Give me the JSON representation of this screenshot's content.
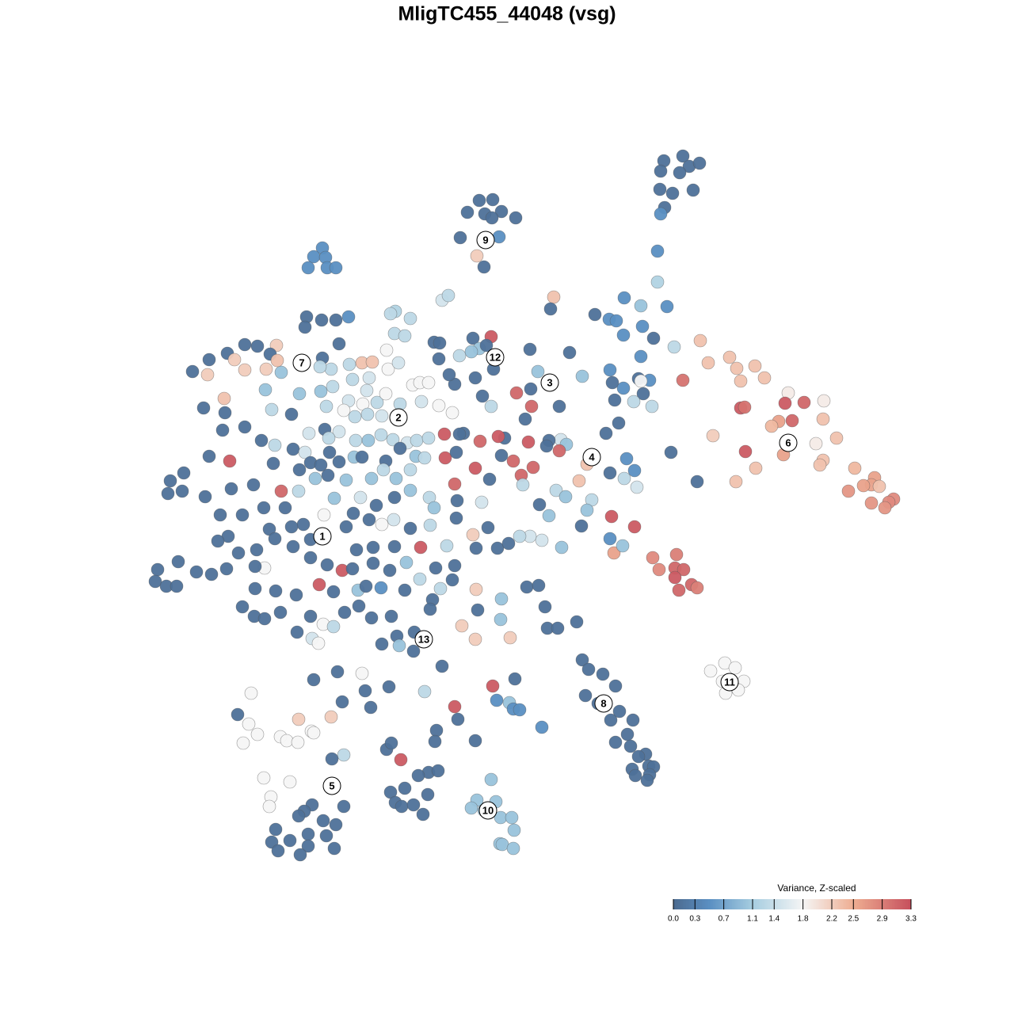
{
  "chart_data": {
    "type": "scatter",
    "title": "MligTC455_44048 (vsg)",
    "xlim": [
      0,
      1280
    ],
    "ylim": [
      1280,
      0
    ],
    "x": [
      838,
      862,
      870,
      883,
      834,
      858,
      833,
      849,
      875,
      839,
      834,
      605,
      622,
      590,
      612,
      633,
      621,
      651,
      581,
      630,
      602,
      611,
      407,
      396,
      411,
      389,
      413,
      424,
      830,
      830,
      699,
      695,
      788,
      809,
      842,
      751,
      769,
      778,
      811,
      787,
      825,
      851,
      719,
      809,
      770,
      735,
      773,
      806,
      820,
      809,
      787,
      812,
      800,
      823,
      776,
      862,
      781,
      765,
      847,
      880,
      884,
      894,
      921,
      930,
      953,
      935,
      965,
      995,
      991,
      1015,
      1040,
      935,
      940,
      983,
      974,
      1000,
      1039,
      900,
      1056,
      1030,
      941,
      989,
      1039,
      954,
      1035,
      929,
      1079,
      1104,
      1100,
      1110,
      1071,
      1090,
      1128,
      1122,
      1100,
      1117,
      824,
      854,
      832,
      852,
      863,
      852,
      873,
      880,
      857,
      775,
      772,
      801,
      770,
      786,
      747,
      741,
      731,
      770,
      791,
      801,
      788,
      804,
      747,
      741,
      734,
      708,
      715,
      706,
      693,
      690,
      702,
      714,
      681,
      693,
      709,
      684,
      669,
      656,
      620,
      597,
      605,
      614,
      580,
      595,
      623,
      679,
      669,
      695,
      706,
      652,
      671,
      670,
      663,
      667,
      637,
      629,
      606,
      633,
      648,
      658,
      673,
      660,
      600,
      574,
      562,
      576,
      561,
      585,
      620,
      609,
      600,
      574,
      567,
      548,
      555,
      554,
      580,
      618,
      608,
      558,
      566,
      499,
      493,
      518,
      440,
      406,
      424,
      387,
      385,
      498,
      511,
      488,
      428,
      407,
      457,
      470,
      441,
      418,
      404,
      490,
      503,
      349,
      341,
      325,
      309,
      287,
      264,
      296,
      309,
      336,
      355,
      243,
      262,
      350,
      382,
      445,
      466,
      521,
      530,
      541,
      505,
      532,
      554,
      571,
      335,
      378,
      405,
      420,
      463,
      440,
      458,
      476,
      487,
      434,
      412,
      464,
      448,
      482,
      343,
      283,
      257,
      284,
      368,
      390,
      410,
      428,
      415,
      449,
      465,
      481,
      496,
      514,
      526,
      541,
      309,
      281,
      330,
      347,
      370,
      385,
      416,
      428,
      447,
      457,
      487,
      505,
      525,
      536,
      518,
      500,
      484,
      469,
      437,
      398,
      377,
      355,
      290,
      264,
      232,
      215,
      212,
      230,
      259,
      292,
      320,
      345,
      378,
      392,
      414,
      405,
      278,
      306,
      333,
      360,
      409,
      422,
      455,
      475,
      498,
      518,
      542,
      548,
      577,
      576,
      543,
      518,
      497,
      482,
      466,
      446,
      437,
      408,
      392,
      383,
      368,
      340,
      288,
      275,
      301,
      324,
      347,
      370,
      392,
      413,
      432,
      450,
      471,
      498,
      531,
      564,
      597,
      616,
      628,
      642,
      601,
      574,
      550,
      513,
      492,
      471,
      445,
      421,
      403,
      374,
      348,
      322,
      334,
      322,
      286,
      267,
      248,
      225,
      199,
      196,
      210,
      223,
      306,
      321,
      334,
      354,
      392,
      408,
      421,
      435,
      453,
      469,
      494,
      511,
      530,
      556,
      571,
      546,
      543,
      523,
      501,
      482,
      504,
      522,
      452,
      462,
      481,
      583,
      600,
      644,
      601,
      633,
      632,
      603,
      665,
      680,
      688,
      691,
      704,
      728,
      375,
      394,
      402,
      558,
      536,
      491,
      461,
      457,
      426,
      396,
      432,
      468,
      551,
      549,
      600,
      622,
      650,
      643,
      627,
      648,
      656,
      574,
      578,
      684,
      488,
      494,
      506,
      541,
      553,
      528,
      540,
      511,
      493,
      499,
      507,
      522,
      534,
      317,
      300,
      314,
      325,
      307,
      354,
      362,
      376,
      377,
      418,
      393,
      396,
      434,
      419,
      333,
      366,
      342,
      340,
      394,
      434,
      384,
      377,
      408,
      424,
      348,
      389,
      412,
      366,
      343,
      389,
      351,
      379,
      422,
      620,
      602,
      626,
      595,
      611,
      632,
      646,
      649,
      631,
      634,
      648,
      735,
      743,
      761,
      777,
      739,
      755,
      771,
      782,
      799,
      792,
      777,
      796,
      815,
      806,
      819,
      825,
      798,
      820,
      817,
      802,
      915,
      928,
      897,
      912,
      939,
      926,
      916,
      932
    ],
    "y": [
      203,
      197,
      210,
      206,
      216,
      218,
      239,
      244,
      240,
      262,
      270,
      253,
      252,
      268,
      270,
      267,
      275,
      275,
      300,
      299,
      323,
      337,
      313,
      324,
      325,
      338,
      338,
      338,
      317,
      356,
      375,
      390,
      376,
      386,
      387,
      397,
      403,
      405,
      412,
      423,
      427,
      438,
      445,
      450,
      467,
      475,
      483,
      478,
      480,
      481,
      490,
      497,
      507,
      513,
      505,
      480,
      534,
      547,
      571,
      608,
      430,
      458,
      451,
      465,
      462,
      481,
      477,
      496,
      509,
      508,
      506,
      515,
      514,
      532,
      538,
      531,
      529,
      550,
      553,
      560,
      570,
      574,
      581,
      591,
      587,
      608,
      591,
      603,
      612,
      614,
      620,
      613,
      630,
      634,
      635,
      641,
      704,
      700,
      719,
      717,
      719,
      729,
      738,
      742,
      745,
      698,
      652,
      665,
      680,
      689,
      577,
      586,
      607,
      597,
      579,
      594,
      604,
      615,
      631,
      644,
      664,
      555,
      561,
      569,
      556,
      563,
      619,
      627,
      637,
      651,
      691,
      682,
      677,
      677,
      425,
      427,
      440,
      436,
      449,
      444,
      466,
      469,
      441,
      483,
      513,
      496,
      513,
      491,
      529,
      558,
      553,
      551,
      557,
      575,
      582,
      600,
      590,
      612,
      591,
      611,
      578,
      571,
      548,
      547,
      513,
      500,
      477,
      485,
      473,
      432,
      433,
      453,
      548,
      605,
      634,
      379,
      373,
      393,
      396,
      402,
      400,
      404,
      404,
      400,
      413,
      421,
      424,
      442,
      434,
      452,
      458,
      457,
      460,
      466,
      463,
      466,
      458,
      436,
      447,
      437,
      435,
      446,
      454,
      454,
      467,
      466,
      470,
      469,
      473,
      455,
      458,
      479,
      477,
      486,
      483,
      483,
      510,
      507,
      512,
      521,
      492,
      497,
      494,
      488,
      493,
      506,
      510,
      508,
      497,
      518,
      513,
      523,
      526,
      525,
      517,
      503,
      515,
      521,
      523,
      547,
      542,
      545,
      553,
      556,
      556,
      549,
      555,
      559,
      556,
      553,
      539,
      543,
      556,
      562,
      567,
      571,
      571,
      583,
      577,
      577,
      582,
      566,
      576,
      578,
      593,
      604,
      593,
      604,
      606,
      604,
      620,
      620,
      582,
      576,
      597,
      607,
      623,
      620,
      627,
      617,
      612,
      585,
      593,
      584,
      600,
      587,
      650,
      650,
      641,
      641,
      650,
      629,
      628,
      638,
      628,
      619,
      628,
      641,
      632,
      654,
      663,
      667,
      656,
      662,
      656,
      648,
      665,
      678,
      681,
      662,
      665,
      668,
      677,
      683,
      698,
      694,
      680,
      690,
      704,
      713,
      720,
      694,
      691,
      690,
      691,
      689,
      675,
      666,
      692,
      686,
      692,
      714,
      717,
      710,
      720,
      711,
      718,
      747,
      738,
      751,
      746,
      743,
      717,
      715,
      718,
      725,
      722,
      709,
      719,
      734,
      740,
      740,
      766,
      778,
      781,
      773,
      778,
      788,
      791,
      773,
      765,
      780,
      778,
      745,
      731,
      743,
      732,
      757,
      769,
      798,
      803,
      813,
      815,
      822,
      745,
      740,
      742,
      790,
      807,
      805,
      744,
      756,
      782,
      770,
      741,
      739,
      766,
      793,
      793,
      785,
      798,
      806,
      812,
      841,
      873,
      867,
      872,
      850,
      848,
      858,
      886,
      893,
      922,
      936,
      935,
      866,
      857,
      887,
      884,
      895,
      896,
      892,
      908,
      918,
      946,
      938,
      959,
      975,
      973,
      979,
      1003,
      995,
      1000,
      1013,
      1018,
      1016,
      1028,
      875,
      902,
      914,
      927,
      938,
      930,
      935,
      937,
      908,
      905,
      923,
      925,
      953,
      958,
      982,
      987,
      1006,
      1018,
      1016,
      1018,
      1024,
      1030,
      1036,
      1041,
      1047,
      1053,
      1055,
      1061,
      1063,
      1068,
      1074,
      1079,
      1071,
      984,
      1010,
      1012,
      1020,
      1023,
      1032,
      1032,
      1048,
      1065,
      1066,
      1071,
      833,
      845,
      851,
      866,
      878,
      888,
      909,
      898,
      909,
      927,
      937,
      942,
      952,
      955,
      967,
      968,
      971,
      978,
      985,
      979,
      837,
      843,
      847,
      860,
      860,
      867,
      875,
      871
    ],
    "values": [
      0.1,
      0.1,
      0.1,
      0.1,
      0.1,
      0.1,
      0.1,
      0.1,
      0.1,
      0.1,
      0.5,
      0.1,
      0.1,
      0.1,
      0.1,
      0.1,
      0.1,
      0.1,
      0.1,
      0.5,
      2.2,
      0.1,
      0.5,
      0.5,
      0.5,
      0.5,
      0.5,
      0.5,
      0.5,
      1.2,
      2.3,
      0.1,
      0.5,
      1.0,
      0.5,
      0.1,
      0.5,
      0.5,
      0.5,
      0.5,
      0.1,
      1.3,
      0.1,
      0.5,
      0.5,
      1.0,
      0.1,
      0.1,
      0.5,
      1.8,
      0.5,
      0.1,
      1.3,
      1.3,
      0.1,
      3.0,
      0.1,
      0.1,
      0.1,
      0.1,
      2.3,
      2.3,
      2.3,
      2.3,
      2.3,
      2.3,
      2.3,
      1.9,
      3.2,
      3.1,
      1.9,
      3.2,
      3.0,
      2.6,
      2.4,
      3.1,
      2.3,
      2.2,
      2.3,
      1.9,
      3.2,
      2.6,
      2.3,
      2.3,
      2.3,
      2.3,
      2.4,
      2.6,
      2.6,
      2.3,
      2.7,
      2.6,
      2.8,
      2.8,
      2.7,
      2.7,
      2.8,
      2.9,
      2.8,
      3.1,
      3.1,
      3.2,
      3.1,
      2.9,
      3.1,
      2.6,
      3.2,
      3.2,
      0.5,
      1.0,
      0.1,
      2.3,
      2.3,
      0.1,
      0.5,
      0.5,
      1.3,
      1.5,
      1.3,
      1.0,
      0.1,
      1.5,
      1.0,
      3.1,
      0.1,
      0.1,
      1.3,
      1.0,
      0.1,
      1.0,
      1.0,
      1.5,
      1.5,
      1.3,
      3.2,
      0.1,
      1.0,
      0.1,
      1.3,
      1.0,
      0.1,
      1.0,
      0.1,
      0.1,
      0.1,
      3.1,
      3.1,
      0.1,
      0.1,
      3.2,
      0.1,
      3.2,
      3.1,
      0.1,
      3.1,
      3.1,
      3.1,
      1.3,
      3.2,
      3.1,
      3.2,
      0.1,
      3.2,
      0.1,
      1.3,
      0.1,
      0.1,
      0.1,
      0.1,
      0.1,
      0.1,
      0.1,
      0.1,
      0.1,
      1.5,
      1.5,
      1.3,
      1.2,
      1.3,
      1.3,
      0.5,
      0.1,
      0.1,
      0.1,
      0.1,
      1.3,
      1.3,
      1.8,
      0.1,
      0.1,
      2.3,
      2.3,
      1.3,
      1.3,
      1.3,
      1.8,
      1.5,
      2.2,
      0.1,
      0.1,
      0.1,
      0.1,
      0.1,
      2.2,
      2.2,
      2.2,
      1.0,
      0.1,
      2.2,
      2.3,
      1.0,
      1.3,
      1.5,
      1.8,
      1.8,
      1.8,
      1.3,
      1.5,
      1.8,
      1.8,
      1.0,
      1.0,
      1.0,
      1.3,
      1.5,
      1.5,
      1.8,
      1.3,
      1.8,
      1.8,
      1.3,
      1.3,
      1.3,
      1.5,
      1.3,
      2.3,
      0.1,
      0.1,
      0.1,
      1.5,
      0.1,
      1.5,
      1.3,
      1.3,
      1.0,
      1.3,
      1.3,
      1.5,
      1.3,
      1.3,
      0.1,
      0.1,
      0.1,
      1.3,
      0.1,
      1.5,
      0.1,
      0.1,
      1.0,
      0.1,
      0.1,
      0.1,
      1.0,
      1.3,
      1.3,
      1.0,
      1.3,
      1.0,
      1.0,
      1.0,
      1.3,
      3.1,
      3.2,
      0.1,
      0.1,
      0.1,
      0.1,
      0.1,
      0.1,
      0.1,
      0.1,
      0.1,
      0.1,
      0.1,
      0.1,
      0.1,
      0.1,
      0.1,
      0.1,
      0.1,
      1.8,
      1.0,
      1.5,
      0.1,
      0.1,
      1.0,
      1.3,
      1.0,
      0.1,
      0.1,
      1.3,
      0.1,
      1.5,
      1.8,
      0.1,
      0.1,
      0.1,
      0.1,
      0.1,
      0.1,
      0.1,
      0.1,
      0.1,
      0.1,
      0.1,
      0.1,
      0.1,
      0.1,
      0.1,
      0.1,
      3.2,
      0.1,
      0.1,
      0.1,
      3.2,
      1.3,
      2.2,
      0.1,
      0.1,
      0.1,
      0.1,
      0.1,
      0.1,
      1.0,
      0.1,
      0.1,
      0.1,
      0.1,
      3.2,
      0.1,
      0.1,
      0.1,
      1.8,
      0.1,
      0.1,
      0.1,
      0.1,
      0.1,
      0.1,
      0.1,
      0.1,
      0.1,
      0.1,
      0.1,
      0.1,
      0.1,
      0.1,
      1.8,
      1.3,
      0.1,
      0.1,
      0.1,
      0.1,
      0.1,
      1.3,
      1.3,
      0.1,
      0.1,
      0.1,
      0.1,
      0.1,
      0.1,
      1.0,
      0.1,
      1.0,
      0.1,
      0.5,
      2.2,
      2.2,
      2.2,
      2.2,
      1.0,
      1.0,
      0.1,
      0.1,
      0.1,
      0.1,
      0.1,
      0.1,
      0.1,
      0.1,
      1.5,
      1.8,
      0.1,
      1.3,
      0.1,
      0.1,
      1.8,
      0.1,
      0.1,
      0.1,
      0.1,
      0.1,
      0.1,
      0.1,
      3.2,
      0.1,
      1.0,
      0.5,
      0.5,
      0.5,
      3.2,
      0.1,
      0.5,
      0.1,
      0.1,
      3.2,
      0.1,
      0.1,
      0.1,
      0.1,
      0.1,
      0.1,
      0.1,
      0.1,
      0.1,
      0.1,
      1.8,
      0.1,
      1.8,
      1.8,
      1.8,
      1.8,
      1.8,
      1.8,
      2.2,
      2.2,
      1.8,
      1.8,
      1.3,
      0.1,
      1.8,
      1.8,
      1.8,
      1.8,
      0.1,
      0.1,
      0.1,
      0.1,
      0.1,
      0.1,
      0.1,
      0.1,
      0.1,
      0.1,
      0.1,
      0.1,
      0.1,
      0.1,
      0.1,
      1.0,
      1.0,
      1.0,
      1.0,
      1.0,
      1.0,
      1.0,
      1.0,
      1.0,
      1.0,
      1.0,
      0.1,
      0.1,
      0.1,
      0.1,
      0.1,
      0.1,
      0.1,
      0.1,
      0.1,
      0.1,
      0.1,
      0.1,
      0.1,
      0.1,
      0.1,
      0.1,
      0.1,
      0.1,
      0.1,
      0.1,
      1.8,
      1.8,
      1.8,
      1.8,
      1.8,
      1.8,
      1.8,
      1.8
    ],
    "annotations": [
      {
        "text": "1",
        "x": 407,
        "y": 677
      },
      {
        "text": "2",
        "x": 503,
        "y": 527
      },
      {
        "text": "3",
        "x": 694,
        "y": 483
      },
      {
        "text": "4",
        "x": 747,
        "y": 577
      },
      {
        "text": "5",
        "x": 419,
        "y": 992
      },
      {
        "text": "6",
        "x": 995,
        "y": 559
      },
      {
        "text": "7",
        "x": 381,
        "y": 458
      },
      {
        "text": "8",
        "x": 762,
        "y": 888
      },
      {
        "text": "9",
        "x": 613,
        "y": 303
      },
      {
        "text": "10",
        "x": 616,
        "y": 1023
      },
      {
        "text": "11",
        "x": 921,
        "y": 861
      },
      {
        "text": "12",
        "x": 625,
        "y": 451
      },
      {
        "text": "13",
        "x": 535,
        "y": 807
      }
    ],
    "colorbar": {
      "title": "Variance, Z-scaled",
      "lim": [
        0,
        3.3
      ],
      "ticks": [
        {
          "value": 0,
          "label": "0.0"
        },
        0.3,
        0.7,
        1.1,
        1.4,
        1.8,
        2.2,
        2.5,
        2.9,
        3.3
      ],
      "colorscale": [
        [
          0,
          "#4b6a8f"
        ],
        [
          0.5,
          "#5a8fc2"
        ],
        [
          1.1,
          "#a6cde0"
        ],
        [
          1.8,
          "#f5f5f5"
        ],
        [
          2.5,
          "#eeae92"
        ],
        [
          3.3,
          "#c64f5c"
        ]
      ]
    }
  }
}
